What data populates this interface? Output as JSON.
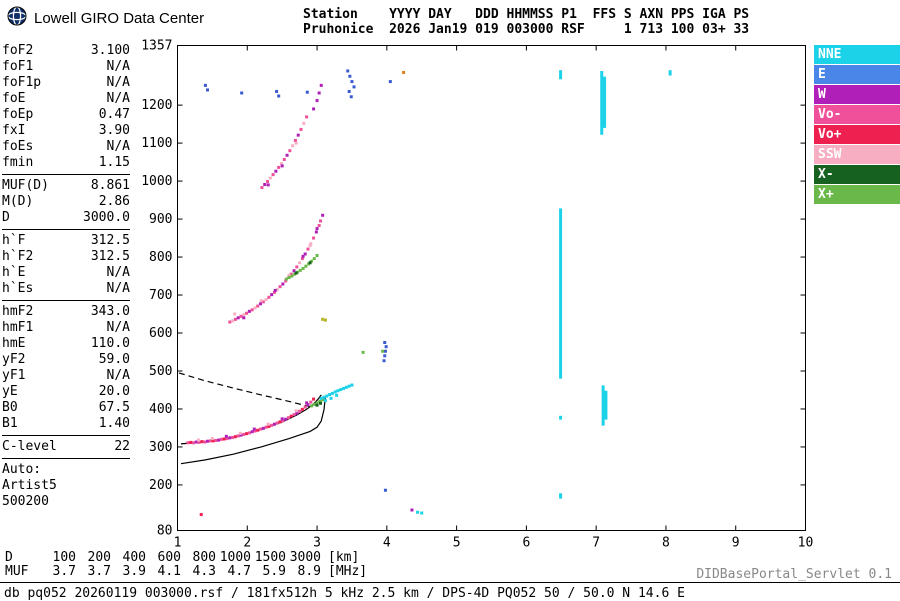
{
  "brand": {
    "name": "Lowell GIRO Data Center"
  },
  "station_header": {
    "line1": "Station    YYYY DAY   DDD HHMMSS P1  FFS S AXN PPS IGA PS",
    "line2": "Pruhonice  2026 Jan19 019 003000 RSF     1 713 100 03+ 33"
  },
  "params": {
    "groups": [
      [
        {
          "label": "foF2",
          "value": "3.100"
        },
        {
          "label": "foF1",
          "value": "N/A"
        },
        {
          "label": "foF1p",
          "value": "N/A"
        },
        {
          "label": "foE",
          "value": "N/A"
        },
        {
          "label": "foEp",
          "value": "0.47"
        },
        {
          "label": "fxI",
          "value": "3.90"
        },
        {
          "label": "foEs",
          "value": "N/A"
        },
        {
          "label": "fmin",
          "value": "1.15"
        }
      ],
      [
        {
          "label": "MUF(D)",
          "value": "8.861"
        },
        {
          "label": "M(D)",
          "value": "2.86"
        },
        {
          "label": "D",
          "value": "3000.0"
        }
      ],
      [
        {
          "label": "h`F",
          "value": "312.5"
        },
        {
          "label": "h`F2",
          "value": "312.5"
        },
        {
          "label": "h`E",
          "value": "N/A"
        },
        {
          "label": "h`Es",
          "value": "N/A"
        }
      ],
      [
        {
          "label": "hmF2",
          "value": "343.0"
        },
        {
          "label": "hmF1",
          "value": "N/A"
        },
        {
          "label": "hmE",
          "value": "110.0"
        },
        {
          "label": "yF2",
          "value": "59.0"
        },
        {
          "label": "yF1",
          "value": "N/A"
        },
        {
          "label": "yE",
          "value": "20.0"
        },
        {
          "label": "B0",
          "value": "67.5"
        },
        {
          "label": "B1",
          "value": "1.40"
        }
      ],
      [
        {
          "label": "C-level",
          "value": "22"
        }
      ]
    ],
    "auto_lines": [
      "Auto:",
      "Artist5",
      "500200"
    ]
  },
  "legend": {
    "items": [
      {
        "label": "NNE",
        "color": "#1cd2e8"
      },
      {
        "label": "E",
        "color": "#4a86e8"
      },
      {
        "label": "W",
        "color": "#b020b8"
      },
      {
        "label": "Vo-",
        "color": "#f0509a"
      },
      {
        "label": "Vo+",
        "color": "#ee2050"
      },
      {
        "label": "SSW",
        "color": "#f8aec2"
      },
      {
        "label": "X-",
        "color": "#166020"
      },
      {
        "label": "X+",
        "color": "#6ab84a"
      }
    ]
  },
  "muf_table": {
    "rows": [
      {
        "label": "D",
        "values": [
          "100",
          "200",
          "400",
          "600",
          "800",
          "1000",
          "1500",
          "3000"
        ],
        "unit": "[km]"
      },
      {
        "label": "MUF",
        "values": [
          "3.7",
          "3.7",
          "3.9",
          "4.1",
          "4.3",
          "4.7",
          "5.9",
          "8.9"
        ],
        "unit": "[MHz]"
      }
    ]
  },
  "footer": {
    "servlet": "DIDBasePortal_Servlet 0.1",
    "status": "db pq052 20260119 003000.rsf / 181fx512h 5 kHz 2.5 km / DPS-4D PQ052 50 / 50.0 N 14.6 E"
  },
  "chart_data": {
    "type": "scatter",
    "title": "Pruhonice ionogram 2026 Jan19 019 003000 RSF",
    "xlabel": "[MHz]",
    "ylabel": "[km]",
    "xlim": [
      1,
      10
    ],
    "ylim": [
      80,
      1357
    ],
    "xticks": [
      1,
      2,
      3,
      4,
      5,
      6,
      7,
      8,
      9,
      10
    ],
    "yticks": [
      80,
      200,
      300,
      400,
      500,
      600,
      700,
      800,
      900,
      1000,
      1100,
      1200,
      1357
    ],
    "grid": false,
    "legend_position": "right",
    "palette": {
      "NNE": "#1cd2e8",
      "E": "#3a5ad0",
      "W": "#b020b8",
      "Vo-": "#f0509a",
      "Vo+": "#ee2050",
      "SSW": "#f8aec2",
      "X-": "#166020",
      "X+": "#6ab84a",
      "yellow": "#b8b428",
      "orange": "#e08020"
    },
    "points": [
      [
        1.15,
        311,
        "Vo-"
      ],
      [
        1.19,
        312,
        "Vo+"
      ],
      [
        1.23,
        311,
        "Vo-"
      ],
      [
        1.27,
        313,
        "W"
      ],
      [
        1.31,
        312,
        "Vo-"
      ],
      [
        1.35,
        314,
        "Vo+"
      ],
      [
        1.39,
        313,
        "Vo-"
      ],
      [
        1.43,
        315,
        "W"
      ],
      [
        1.47,
        316,
        "Vo-"
      ],
      [
        1.51,
        316,
        "Vo+"
      ],
      [
        1.55,
        317,
        "Vo-"
      ],
      [
        1.59,
        318,
        "W"
      ],
      [
        1.63,
        320,
        "Vo-"
      ],
      [
        1.67,
        321,
        "Vo+"
      ],
      [
        1.71,
        322,
        "Vo-"
      ],
      [
        1.75,
        324,
        "W"
      ],
      [
        1.79,
        325,
        "Vo-"
      ],
      [
        1.83,
        327,
        "Vo+"
      ],
      [
        1.87,
        329,
        "Vo-"
      ],
      [
        1.91,
        331,
        "W"
      ],
      [
        1.95,
        333,
        "Vo-"
      ],
      [
        1.99,
        335,
        "Vo+"
      ],
      [
        2.03,
        337,
        "Vo-"
      ],
      [
        2.07,
        340,
        "W"
      ],
      [
        2.11,
        342,
        "Vo-"
      ],
      [
        2.15,
        344,
        "Vo+"
      ],
      [
        2.19,
        347,
        "Vo-"
      ],
      [
        2.23,
        349,
        "W"
      ],
      [
        2.27,
        352,
        "Vo-"
      ],
      [
        2.31,
        354,
        "Vo+"
      ],
      [
        2.35,
        357,
        "Vo-"
      ],
      [
        2.39,
        360,
        "W"
      ],
      [
        2.43,
        363,
        "Vo-"
      ],
      [
        2.47,
        366,
        "Vo+"
      ],
      [
        2.51,
        369,
        "Vo-"
      ],
      [
        2.55,
        373,
        "W"
      ],
      [
        2.59,
        377,
        "Vo-"
      ],
      [
        2.63,
        381,
        "Vo+"
      ],
      [
        2.67,
        385,
        "Vo-"
      ],
      [
        2.71,
        389,
        "W"
      ],
      [
        2.75,
        394,
        "Vo-"
      ],
      [
        2.79,
        399,
        "Vo+"
      ],
      [
        2.83,
        405,
        "Vo-"
      ],
      [
        2.87,
        411,
        "W"
      ],
      [
        2.91,
        418,
        "Vo-"
      ],
      [
        2.95,
        426,
        "Vo+"
      ],
      [
        1.3,
        318,
        "SSW"
      ],
      [
        1.5,
        322,
        "SSW"
      ],
      [
        1.7,
        328,
        "W"
      ],
      [
        1.9,
        336,
        "SSW"
      ],
      [
        2.1,
        347,
        "W"
      ],
      [
        2.3,
        360,
        "SSW"
      ],
      [
        2.5,
        374,
        "W"
      ],
      [
        2.7,
        395,
        "SSW"
      ],
      [
        2.85,
        416,
        "W"
      ],
      [
        2.92,
        408,
        "X+"
      ],
      [
        2.96,
        412,
        "X+"
      ],
      [
        3.0,
        416,
        "X+"
      ],
      [
        3.04,
        420,
        "X+"
      ],
      [
        3.08,
        424,
        "X+"
      ],
      [
        3.0,
        410,
        "X-"
      ],
      [
        3.05,
        415,
        "X-"
      ],
      [
        3.06,
        428,
        "NNE"
      ],
      [
        3.1,
        431,
        "NNE"
      ],
      [
        3.14,
        434,
        "NNE"
      ],
      [
        3.18,
        438,
        "NNE"
      ],
      [
        3.22,
        441,
        "NNE"
      ],
      [
        3.26,
        445,
        "NNE"
      ],
      [
        3.3,
        448,
        "NNE"
      ],
      [
        3.34,
        451,
        "NNE"
      ],
      [
        3.38,
        454,
        "NNE"
      ],
      [
        3.42,
        457,
        "NNE"
      ],
      [
        3.46,
        460,
        "NNE"
      ],
      [
        3.5,
        463,
        "NNE"
      ],
      [
        3.12,
        422,
        "NNE"
      ],
      [
        3.2,
        428,
        "NNE"
      ],
      [
        3.28,
        436,
        "NNE"
      ],
      [
        1.75,
        629,
        "Vo-"
      ],
      [
        1.79,
        632,
        "SSW"
      ],
      [
        1.83,
        636,
        "Vo-"
      ],
      [
        1.87,
        640,
        "W"
      ],
      [
        1.91,
        644,
        "Vo-"
      ],
      [
        1.95,
        648,
        "SSW"
      ],
      [
        1.99,
        652,
        "Vo-"
      ],
      [
        2.03,
        657,
        "W"
      ],
      [
        2.07,
        661,
        "Vo-"
      ],
      [
        2.11,
        666,
        "SSW"
      ],
      [
        2.15,
        671,
        "Vo-"
      ],
      [
        2.19,
        677,
        "W"
      ],
      [
        2.23,
        682,
        "Vo-"
      ],
      [
        2.27,
        688,
        "SSW"
      ],
      [
        2.31,
        694,
        "Vo-"
      ],
      [
        2.35,
        701,
        "W"
      ],
      [
        2.39,
        707,
        "Vo-"
      ],
      [
        2.43,
        714,
        "SSW"
      ],
      [
        2.47,
        722,
        "Vo-"
      ],
      [
        2.51,
        729,
        "W"
      ],
      [
        2.55,
        737,
        "Vo-"
      ],
      [
        2.59,
        746,
        "SSW"
      ],
      [
        2.63,
        755,
        "Vo-"
      ],
      [
        2.67,
        764,
        "W"
      ],
      [
        2.71,
        774,
        "Vo-"
      ],
      [
        2.75,
        785,
        "SSW"
      ],
      [
        2.79,
        796,
        "Vo-"
      ],
      [
        2.83,
        808,
        "W"
      ],
      [
        2.87,
        821,
        "Vo-"
      ],
      [
        2.91,
        835,
        "SSW"
      ],
      [
        2.95,
        850,
        "Vo-"
      ],
      [
        2.99,
        866,
        "W"
      ],
      [
        3.03,
        883,
        "Vo-"
      ],
      [
        1.82,
        650,
        "SSW"
      ],
      [
        1.95,
        640,
        "W"
      ],
      [
        2.2,
        685,
        "SSW"
      ],
      [
        2.4,
        712,
        "W"
      ],
      [
        2.6,
        752,
        "SSW"
      ],
      [
        2.8,
        802,
        "W"
      ],
      [
        2.9,
        830,
        "SSW"
      ],
      [
        3.0,
        875,
        "W"
      ],
      [
        3.05,
        895,
        "Vo-"
      ],
      [
        3.08,
        910,
        "W"
      ],
      [
        2.56,
        742,
        "X+"
      ],
      [
        2.6,
        746,
        "X+"
      ],
      [
        2.64,
        750,
        "X+"
      ],
      [
        2.68,
        755,
        "X+"
      ],
      [
        2.72,
        760,
        "X+"
      ],
      [
        2.76,
        765,
        "X+"
      ],
      [
        2.8,
        770,
        "X+"
      ],
      [
        2.84,
        776,
        "X+"
      ],
      [
        2.88,
        782,
        "X+"
      ],
      [
        2.92,
        789,
        "X+"
      ],
      [
        2.96,
        796,
        "X+"
      ],
      [
        3.0,
        804,
        "X+"
      ],
      [
        2.7,
        758,
        "X-"
      ],
      [
        2.9,
        785,
        "X-"
      ],
      [
        2.21,
        983,
        "Vo-"
      ],
      [
        2.25,
        991,
        "W"
      ],
      [
        2.29,
        999,
        "Vo-"
      ],
      [
        2.33,
        1008,
        "SSW"
      ],
      [
        2.37,
        1017,
        "Vo-"
      ],
      [
        2.41,
        1026,
        "W"
      ],
      [
        2.45,
        1036,
        "Vo-"
      ],
      [
        2.49,
        1046,
        "SSW"
      ],
      [
        2.53,
        1057,
        "Vo-"
      ],
      [
        2.57,
        1068,
        "W"
      ],
      [
        2.61,
        1080,
        "Vo-"
      ],
      [
        2.65,
        1093,
        "SSW"
      ],
      [
        2.69,
        1107,
        "Vo-"
      ],
      [
        2.73,
        1121,
        "W"
      ],
      [
        2.77,
        1136,
        "Vo-"
      ],
      [
        2.81,
        1152,
        "SSW"
      ],
      [
        2.85,
        1169,
        "Vo-"
      ],
      [
        2.3,
        990,
        "W"
      ],
      [
        2.5,
        1040,
        "W"
      ],
      [
        2.7,
        1100,
        "SSW"
      ],
      [
        2.95,
        1190,
        "W"
      ],
      [
        3.0,
        1212,
        "W"
      ],
      [
        3.03,
        1232,
        "W"
      ],
      [
        3.06,
        1252,
        "W"
      ],
      [
        1.4,
        1252,
        "E"
      ],
      [
        1.43,
        1240,
        "E"
      ],
      [
        1.92,
        1232,
        "E"
      ],
      [
        2.42,
        1236,
        "E"
      ],
      [
        2.45,
        1224,
        "E"
      ],
      [
        2.86,
        1234,
        "E"
      ],
      [
        3.44,
        1290,
        "E"
      ],
      [
        3.47,
        1276,
        "E"
      ],
      [
        3.5,
        1262,
        "E"
      ],
      [
        3.53,
        1248,
        "E"
      ],
      [
        3.46,
        1236,
        "E"
      ],
      [
        3.49,
        1222,
        "E"
      ],
      [
        3.96,
        527,
        "E"
      ],
      [
        3.97,
        540,
        "E"
      ],
      [
        3.98,
        552,
        "E"
      ],
      [
        3.99,
        564,
        "E"
      ],
      [
        3.97,
        575,
        "E"
      ],
      [
        3.94,
        552,
        "X+"
      ],
      [
        3.66,
        549,
        "X+"
      ],
      [
        3.98,
        186,
        "E"
      ],
      [
        4.05,
        1262,
        "E"
      ],
      [
        3.08,
        636,
        "yellow"
      ],
      [
        3.12,
        634,
        "yellow"
      ],
      [
        4.24,
        1286,
        "orange"
      ],
      [
        1.34,
        122,
        "Vo+"
      ],
      [
        4.36,
        134,
        "W"
      ],
      [
        4.44,
        128,
        "NNE"
      ],
      [
        4.5,
        126,
        "NNE"
      ]
    ],
    "segments": [
      [
        6.49,
        480,
        928,
        "NNE"
      ],
      [
        6.49,
        1268,
        1292,
        "NNE"
      ],
      [
        6.49,
        164,
        178,
        "NNE"
      ],
      [
        6.49,
        372,
        382,
        "NNE"
      ],
      [
        7.08,
        1122,
        1290,
        "NNE"
      ],
      [
        7.12,
        1140,
        1275,
        "NNE"
      ],
      [
        7.1,
        356,
        462,
        "NNE"
      ],
      [
        7.14,
        372,
        448,
        "NNE"
      ],
      [
        8.06,
        1278,
        1292,
        "NNE"
      ]
    ],
    "curves": [
      {
        "name": "extrapolated-trace",
        "style": "dashed",
        "points": [
          [
            1.02,
            495
          ],
          [
            1.4,
            474
          ],
          [
            1.8,
            455
          ],
          [
            2.2,
            437
          ],
          [
            2.6,
            420
          ],
          [
            2.9,
            406
          ]
        ]
      },
      {
        "name": "hF-trace-fit",
        "style": "solid",
        "points": [
          [
            1.05,
            308
          ],
          [
            1.3,
            312
          ],
          [
            1.6,
            318
          ],
          [
            1.9,
            330
          ],
          [
            2.2,
            346
          ],
          [
            2.5,
            366
          ],
          [
            2.7,
            383
          ],
          [
            2.85,
            399
          ],
          [
            2.95,
            413
          ],
          [
            3.02,
            427
          ],
          [
            3.06,
            437
          ]
        ]
      },
      {
        "name": "true-height-profile",
        "style": "solid",
        "points": [
          [
            1.05,
            256
          ],
          [
            1.4,
            266
          ],
          [
            1.8,
            281
          ],
          [
            2.2,
            300
          ],
          [
            2.6,
            322
          ],
          [
            2.9,
            341
          ],
          [
            3.0,
            352
          ],
          [
            3.06,
            368
          ],
          [
            3.1,
            398
          ],
          [
            3.12,
            432
          ]
        ]
      }
    ]
  }
}
